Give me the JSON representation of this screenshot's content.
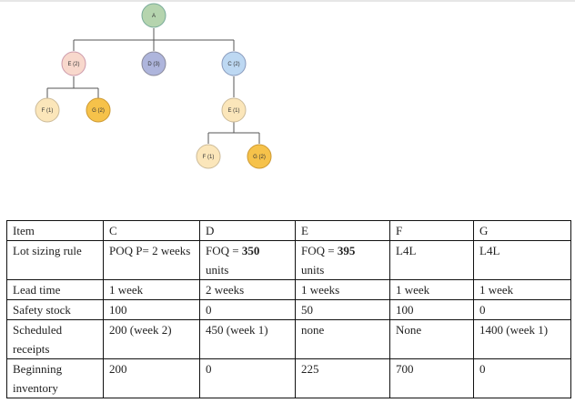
{
  "tree": {
    "nodes": {
      "A": {
        "label": "A",
        "color": "#b5d4ae"
      },
      "E1": {
        "label": "E (2)",
        "color": "#f8d8cc"
      },
      "D": {
        "label": "D (3)",
        "color": "#aeb5dc"
      },
      "C": {
        "label": "C (2)",
        "color": "#bdd8f2"
      },
      "F1": {
        "label": "F (1)",
        "color": "#fbe6ba"
      },
      "G1": {
        "label": "G (2)",
        "color": "#f6c24a"
      },
      "E2": {
        "label": "E (1)",
        "color": "#fbe6ba"
      },
      "F2": {
        "label": "F (1)",
        "color": "#fbe6ba"
      },
      "G2": {
        "label": "G (2)",
        "color": "#f6c24a"
      }
    }
  },
  "table": {
    "headers": [
      "Item",
      "C",
      "D",
      "E",
      "F",
      "G"
    ],
    "lot_sizing": {
      "label": "Lot sizing rule",
      "c": "POQ P= 2 weeks",
      "d_prefix": "FOQ = ",
      "d_value": "350",
      "d_unit": "units",
      "e_prefix": "FOQ = ",
      "e_value": "395",
      "e_unit": "units",
      "f": "L4L",
      "g": "L4L"
    },
    "lead_time": {
      "label": "Lead time",
      "values": [
        "1 week",
        "2 weeks",
        "1 weeks",
        "1 week",
        "1 week"
      ]
    },
    "safety_stock": {
      "label": "Safety stock",
      "values": [
        "100",
        "0",
        "50",
        "100",
        "0"
      ]
    },
    "scheduled": {
      "label": "Scheduled receipts",
      "values": [
        "200 (week 2)",
        "450 (week 1)",
        "none",
        "None",
        "1400 (week 1)"
      ]
    },
    "beginning": {
      "label": "Beginning inventory",
      "values": [
        "200",
        "0",
        "225",
        "700",
        "0"
      ]
    }
  }
}
